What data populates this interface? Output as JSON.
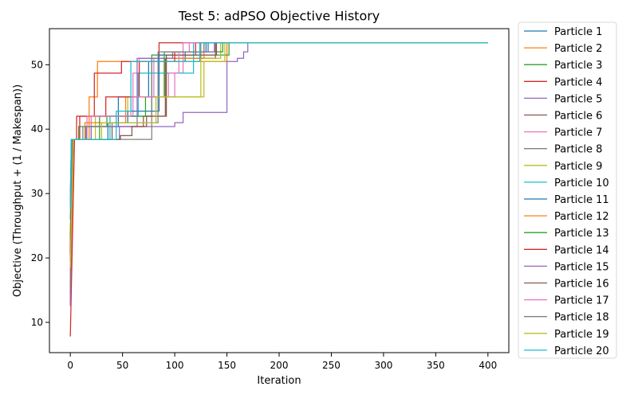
{
  "chart_data": {
    "type": "line",
    "title": "Test 5: adPSO Objective History",
    "xlabel": "Iteration",
    "ylabel": "Objective (Throughput + (1 / Makespan))",
    "xlim": [
      -20,
      420
    ],
    "ylim": [
      5.3,
      55.6
    ],
    "xticks": [
      0,
      50,
      100,
      150,
      200,
      250,
      300,
      350,
      400
    ],
    "yticks": [
      10,
      20,
      30,
      40,
      50
    ],
    "grid": false,
    "legend_position": "outside-right",
    "series": [
      {
        "name": "Particle 1",
        "color": "#1f77b4",
        "points": [
          [
            0,
            28.5
          ],
          [
            1,
            38.4
          ],
          [
            15,
            38.4
          ],
          [
            15,
            40.4
          ],
          [
            46,
            40.4
          ],
          [
            46,
            45.0
          ],
          [
            75,
            45.0
          ],
          [
            75,
            50.5
          ],
          [
            110,
            50.5
          ],
          [
            110,
            52.0
          ],
          [
            130,
            52.0
          ],
          [
            130,
            53.4
          ],
          [
            400,
            53.4
          ]
        ]
      },
      {
        "name": "Particle 2",
        "color": "#ff7f0e",
        "points": [
          [
            0,
            13.5
          ],
          [
            3,
            38.4
          ],
          [
            18,
            38.4
          ],
          [
            18,
            45.0
          ],
          [
            26,
            45.0
          ],
          [
            26,
            50.5
          ],
          [
            150,
            50.5
          ],
          [
            150,
            53.4
          ],
          [
            400,
            53.4
          ]
        ]
      },
      {
        "name": "Particle 3",
        "color": "#2ca02c",
        "points": [
          [
            0,
            21.5
          ],
          [
            1,
            38.4
          ],
          [
            8,
            38.4
          ],
          [
            8,
            40.4
          ],
          [
            35,
            40.4
          ],
          [
            35,
            42.0
          ],
          [
            78,
            42.0
          ],
          [
            78,
            51.5
          ],
          [
            152,
            51.5
          ],
          [
            152,
            53.4
          ],
          [
            400,
            53.4
          ]
        ]
      },
      {
        "name": "Particle 4",
        "color": "#d62728",
        "points": [
          [
            0,
            7.8
          ],
          [
            4,
            38.4
          ],
          [
            6,
            38.4
          ],
          [
            6,
            42.0
          ],
          [
            23,
            42.0
          ],
          [
            23,
            48.7
          ],
          [
            49,
            48.7
          ],
          [
            49,
            50.5
          ],
          [
            85,
            50.5
          ],
          [
            85,
            53.4
          ],
          [
            400,
            53.4
          ]
        ]
      },
      {
        "name": "Particle 5",
        "color": "#9467bd",
        "points": [
          [
            0,
            12.5
          ],
          [
            2,
            38.4
          ],
          [
            47,
            38.4
          ],
          [
            47,
            40.4
          ],
          [
            100,
            40.4
          ],
          [
            100,
            41.0
          ],
          [
            108,
            41.0
          ],
          [
            108,
            42.6
          ],
          [
            150,
            42.6
          ],
          [
            150,
            50.5
          ],
          [
            160,
            50.5
          ],
          [
            160,
            51.0
          ],
          [
            166,
            51.0
          ],
          [
            166,
            52.0
          ],
          [
            170,
            52.0
          ],
          [
            170,
            53.4
          ],
          [
            400,
            53.4
          ]
        ]
      },
      {
        "name": "Particle 6",
        "color": "#8c564b",
        "points": [
          [
            0,
            21.0
          ],
          [
            2,
            38.4
          ],
          [
            40,
            38.4
          ],
          [
            40,
            40.4
          ],
          [
            70,
            40.4
          ],
          [
            70,
            42.0
          ],
          [
            91,
            42.0
          ],
          [
            91,
            51.0
          ],
          [
            139,
            51.0
          ],
          [
            139,
            53.4
          ],
          [
            400,
            53.4
          ]
        ]
      },
      {
        "name": "Particle 7",
        "color": "#e377c2",
        "points": [
          [
            0,
            17.5
          ],
          [
            2,
            38.4
          ],
          [
            20,
            38.4
          ],
          [
            20,
            42.0
          ],
          [
            60,
            42.0
          ],
          [
            60,
            48.7
          ],
          [
            66,
            48.7
          ],
          [
            66,
            51.0
          ],
          [
            80,
            51.0
          ],
          [
            80,
            45.0
          ],
          [
            100,
            45.0
          ],
          [
            100,
            48.7
          ],
          [
            108,
            48.7
          ],
          [
            108,
            53.4
          ],
          [
            400,
            53.4
          ]
        ]
      },
      {
        "name": "Particle 8",
        "color": "#7f7f7f",
        "points": [
          [
            0,
            14.5
          ],
          [
            2,
            38.4
          ],
          [
            78,
            38.4
          ],
          [
            78,
            51.0
          ],
          [
            125,
            51.0
          ],
          [
            125,
            53.4
          ],
          [
            400,
            53.4
          ]
        ]
      },
      {
        "name": "Particle 9",
        "color": "#bcbd22",
        "points": [
          [
            0,
            24.0
          ],
          [
            3,
            38.4
          ],
          [
            24,
            38.4
          ],
          [
            24,
            42.0
          ],
          [
            55,
            42.0
          ],
          [
            55,
            45.0
          ],
          [
            125,
            45.0
          ],
          [
            125,
            51.0
          ],
          [
            144,
            51.0
          ],
          [
            144,
            53.4
          ],
          [
            400,
            53.4
          ]
        ]
      },
      {
        "name": "Particle 10",
        "color": "#17becf",
        "points": [
          [
            0,
            30.0
          ],
          [
            1,
            38.4
          ],
          [
            38,
            38.4
          ],
          [
            38,
            42.0
          ],
          [
            65,
            42.0
          ],
          [
            65,
            48.7
          ],
          [
            118,
            48.7
          ],
          [
            118,
            53.4
          ],
          [
            400,
            53.4
          ]
        ]
      },
      {
        "name": "Particle 11",
        "color": "#1f77b4",
        "points": [
          [
            0,
            26.0
          ],
          [
            2,
            38.4
          ],
          [
            36,
            38.4
          ],
          [
            36,
            41.0
          ],
          [
            55,
            41.0
          ],
          [
            55,
            42.8
          ],
          [
            85,
            42.8
          ],
          [
            85,
            51.5
          ],
          [
            120,
            51.5
          ],
          [
            120,
            52.0
          ],
          [
            132,
            52.0
          ],
          [
            132,
            53.4
          ],
          [
            400,
            53.4
          ]
        ]
      },
      {
        "name": "Particle 12",
        "color": "#ff7f0e",
        "points": [
          [
            0,
            22.0
          ],
          [
            2,
            38.4
          ],
          [
            14,
            38.4
          ],
          [
            14,
            41.0
          ],
          [
            53,
            41.0
          ],
          [
            53,
            45.0
          ],
          [
            90,
            45.0
          ],
          [
            90,
            51.0
          ],
          [
            128,
            51.0
          ],
          [
            128,
            53.4
          ],
          [
            400,
            53.4
          ]
        ]
      },
      {
        "name": "Particle 13",
        "color": "#2ca02c",
        "points": [
          [
            0,
            23.0
          ],
          [
            2,
            38.4
          ],
          [
            28,
            38.4
          ],
          [
            28,
            42.0
          ],
          [
            72,
            42.0
          ],
          [
            72,
            45.0
          ],
          [
            90,
            45.0
          ],
          [
            90,
            52.0
          ],
          [
            146,
            52.0
          ],
          [
            146,
            53.4
          ],
          [
            400,
            53.4
          ]
        ]
      },
      {
        "name": "Particle 14",
        "color": "#d62728",
        "points": [
          [
            0,
            20.5
          ],
          [
            2,
            38.4
          ],
          [
            9,
            38.4
          ],
          [
            9,
            42.0
          ],
          [
            34,
            42.0
          ],
          [
            34,
            45.0
          ],
          [
            66,
            45.0
          ],
          [
            66,
            50.5
          ],
          [
            100,
            50.5
          ],
          [
            100,
            52.0
          ],
          [
            120,
            52.0
          ],
          [
            120,
            53.4
          ],
          [
            400,
            53.4
          ]
        ]
      },
      {
        "name": "Particle 15",
        "color": "#9467bd",
        "points": [
          [
            0,
            12.8
          ],
          [
            2,
            38.4
          ],
          [
            20,
            38.4
          ],
          [
            20,
            40.4
          ],
          [
            64,
            40.4
          ],
          [
            64,
            51.0
          ],
          [
            98,
            51.0
          ],
          [
            98,
            52.0
          ],
          [
            138,
            52.0
          ],
          [
            138,
            53.4
          ],
          [
            400,
            53.4
          ]
        ]
      },
      {
        "name": "Particle 16",
        "color": "#8c564b",
        "points": [
          [
            0,
            19.5
          ],
          [
            3,
            38.4
          ],
          [
            48,
            38.4
          ],
          [
            48,
            39.0
          ],
          [
            59,
            39.0
          ],
          [
            59,
            40.4
          ],
          [
            73,
            40.4
          ],
          [
            73,
            42.0
          ],
          [
            92,
            42.0
          ],
          [
            92,
            51.5
          ],
          [
            140,
            51.5
          ],
          [
            140,
            53.4
          ],
          [
            400,
            53.4
          ]
        ]
      },
      {
        "name": "Particle 17",
        "color": "#e377c2",
        "points": [
          [
            0,
            16.5
          ],
          [
            2,
            38.4
          ],
          [
            16,
            38.4
          ],
          [
            16,
            42.0
          ],
          [
            58,
            42.0
          ],
          [
            58,
            45.0
          ],
          [
            94,
            45.0
          ],
          [
            94,
            48.7
          ],
          [
            104,
            48.7
          ],
          [
            104,
            52.0
          ],
          [
            114,
            52.0
          ],
          [
            114,
            53.4
          ],
          [
            400,
            53.4
          ]
        ]
      },
      {
        "name": "Particle 18",
        "color": "#7f7f7f",
        "points": [
          [
            0,
            15.5
          ],
          [
            2,
            38.4
          ],
          [
            12,
            38.4
          ],
          [
            12,
            40.4
          ],
          [
            40,
            40.4
          ],
          [
            40,
            41.0
          ],
          [
            84,
            41.0
          ],
          [
            84,
            52.0
          ],
          [
            128,
            52.0
          ],
          [
            128,
            53.4
          ],
          [
            400,
            53.4
          ]
        ]
      },
      {
        "name": "Particle 19",
        "color": "#bcbd22",
        "points": [
          [
            0,
            18.5
          ],
          [
            3,
            38.4
          ],
          [
            30,
            38.4
          ],
          [
            30,
            41.0
          ],
          [
            82,
            41.0
          ],
          [
            82,
            45.0
          ],
          [
            128,
            45.0
          ],
          [
            128,
            50.5
          ],
          [
            148,
            50.5
          ],
          [
            148,
            53.4
          ],
          [
            400,
            53.4
          ]
        ]
      },
      {
        "name": "Particle 20",
        "color": "#17becf",
        "points": [
          [
            0,
            27.5
          ],
          [
            1,
            38.4
          ],
          [
            44,
            38.4
          ],
          [
            44,
            42.8
          ],
          [
            58,
            42.8
          ],
          [
            58,
            50.5
          ],
          [
            124,
            50.5
          ],
          [
            124,
            53.4
          ],
          [
            400,
            53.4
          ]
        ]
      }
    ]
  }
}
